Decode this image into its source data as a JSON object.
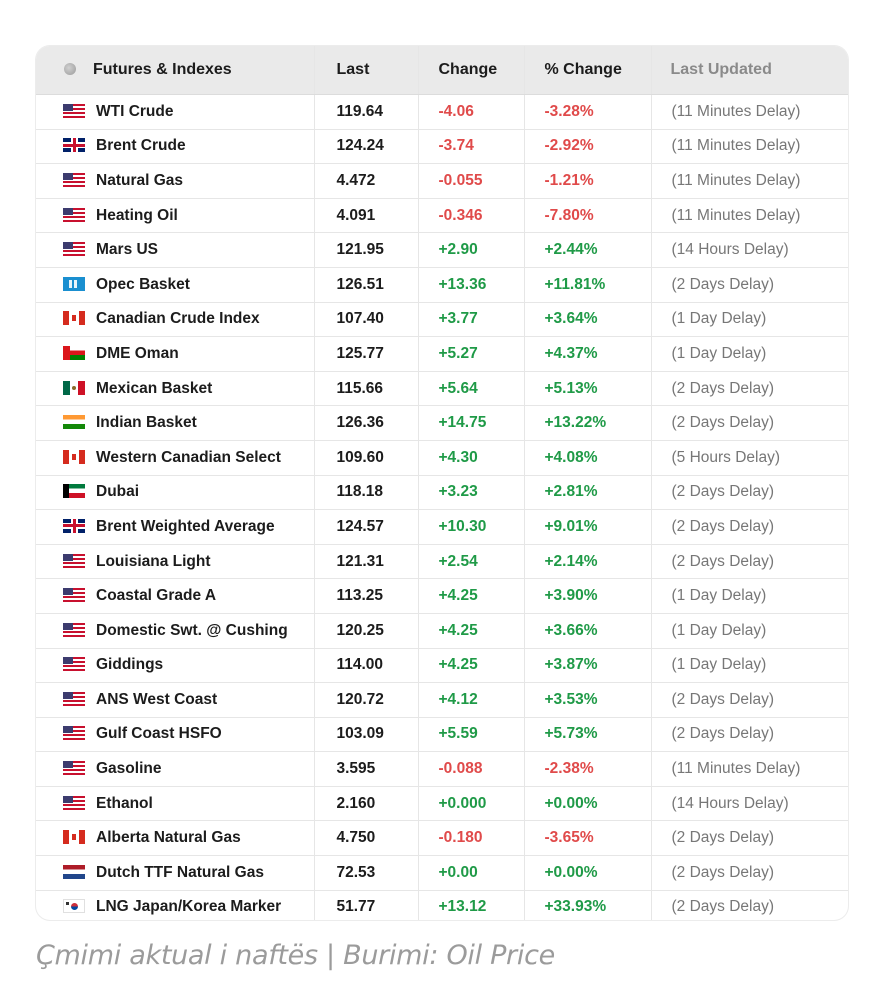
{
  "table": {
    "headers": {
      "name": "Futures & Indexes",
      "last": "Last",
      "change": "Change",
      "pct_change": "% Change",
      "updated": "Last Updated"
    },
    "rows": [
      {
        "name": "WTI Crude",
        "flag": "us-flag-icon",
        "last": "119.64",
        "change": "-4.06",
        "pct": "-3.28%",
        "updated": "(11 Minutes Delay)",
        "trend": "neg"
      },
      {
        "name": "Brent Crude",
        "flag": "uk-flag-icon",
        "last": "124.24",
        "change": "-3.74",
        "pct": "-2.92%",
        "updated": "(11 Minutes Delay)",
        "trend": "neg"
      },
      {
        "name": "Natural Gas",
        "flag": "us-flag-icon",
        "last": "4.472",
        "change": "-0.055",
        "pct": "-1.21%",
        "updated": "(11 Minutes Delay)",
        "trend": "neg"
      },
      {
        "name": "Heating Oil",
        "flag": "us-flag-icon",
        "last": "4.091",
        "change": "-0.346",
        "pct": "-7.80%",
        "updated": "(11 Minutes Delay)",
        "trend": "neg"
      },
      {
        "name": "Mars US",
        "flag": "us-flag-icon",
        "last": "121.95",
        "change": "+2.90",
        "pct": "+2.44%",
        "updated": "(14 Hours Delay)",
        "trend": "pos"
      },
      {
        "name": "Opec Basket",
        "flag": "opec-flag-icon",
        "last": "126.51",
        "change": "+13.36",
        "pct": "+11.81%",
        "updated": "(2 Days Delay)",
        "trend": "pos"
      },
      {
        "name": "Canadian Crude Index",
        "flag": "canada-flag-icon",
        "last": "107.40",
        "change": "+3.77",
        "pct": "+3.64%",
        "updated": "(1 Day Delay)",
        "trend": "pos"
      },
      {
        "name": "DME Oman",
        "flag": "oman-flag-icon",
        "last": "125.77",
        "change": "+5.27",
        "pct": "+4.37%",
        "updated": "(1 Day Delay)",
        "trend": "pos"
      },
      {
        "name": "Mexican Basket",
        "flag": "mexico-flag-icon",
        "last": "115.66",
        "change": "+5.64",
        "pct": "+5.13%",
        "updated": "(2 Days Delay)",
        "trend": "pos"
      },
      {
        "name": "Indian Basket",
        "flag": "india-flag-icon",
        "last": "126.36",
        "change": "+14.75",
        "pct": "+13.22%",
        "updated": "(2 Days Delay)",
        "trend": "pos"
      },
      {
        "name": "Western Canadian Select",
        "flag": "canada-flag-icon",
        "last": "109.60",
        "change": "+4.30",
        "pct": "+4.08%",
        "updated": "(5 Hours Delay)",
        "trend": "pos"
      },
      {
        "name": "Dubai",
        "flag": "uae-flag-icon",
        "last": "118.18",
        "change": "+3.23",
        "pct": "+2.81%",
        "updated": "(2 Days Delay)",
        "trend": "pos"
      },
      {
        "name": "Brent Weighted Average",
        "flag": "uk-flag-icon",
        "last": "124.57",
        "change": "+10.30",
        "pct": "+9.01%",
        "updated": "(2 Days Delay)",
        "trend": "pos"
      },
      {
        "name": "Louisiana Light",
        "flag": "us-flag-icon",
        "last": "121.31",
        "change": "+2.54",
        "pct": "+2.14%",
        "updated": "(2 Days Delay)",
        "trend": "pos"
      },
      {
        "name": "Coastal Grade A",
        "flag": "us-flag-icon",
        "last": "113.25",
        "change": "+4.25",
        "pct": "+3.90%",
        "updated": "(1 Day Delay)",
        "trend": "pos"
      },
      {
        "name": "Domestic Swt. @ Cushing",
        "flag": "us-flag-icon",
        "last": "120.25",
        "change": "+4.25",
        "pct": "+3.66%",
        "updated": "(1 Day Delay)",
        "trend": "pos"
      },
      {
        "name": "Giddings",
        "flag": "us-flag-icon",
        "last": "114.00",
        "change": "+4.25",
        "pct": "+3.87%",
        "updated": "(1 Day Delay)",
        "trend": "pos"
      },
      {
        "name": "ANS West Coast",
        "flag": "us-flag-icon",
        "last": "120.72",
        "change": "+4.12",
        "pct": "+3.53%",
        "updated": "(2 Days Delay)",
        "trend": "pos"
      },
      {
        "name": "Gulf Coast HSFO",
        "flag": "us-flag-icon",
        "last": "103.09",
        "change": "+5.59",
        "pct": "+5.73%",
        "updated": "(2 Days Delay)",
        "trend": "pos"
      },
      {
        "name": "Gasoline",
        "flag": "us-flag-icon",
        "last": "3.595",
        "change": "-0.088",
        "pct": "-2.38%",
        "updated": "(11 Minutes Delay)",
        "trend": "neg"
      },
      {
        "name": "Ethanol",
        "flag": "us-flag-icon",
        "last": "2.160",
        "change": "+0.000",
        "pct": "+0.00%",
        "updated": "(14 Hours Delay)",
        "trend": "pos"
      },
      {
        "name": "Alberta Natural Gas",
        "flag": "canada-flag-icon",
        "last": "4.750",
        "change": "-0.180",
        "pct": "-3.65%",
        "updated": "(2 Days Delay)",
        "trend": "neg"
      },
      {
        "name": "Dutch TTF Natural Gas",
        "flag": "netherlands-flag-icon",
        "last": "72.53",
        "change": "+0.00",
        "pct": "+0.00%",
        "updated": "(2 Days Delay)",
        "trend": "pos"
      },
      {
        "name": "LNG Japan/Korea Marker",
        "flag": "korea-flag-icon",
        "last": "51.77",
        "change": "+13.12",
        "pct": "+33.93%",
        "updated": "(2 Days Delay)",
        "trend": "pos"
      }
    ]
  },
  "caption": "Çmimi aktual i naftës | Burimi: Oil Price",
  "colors": {
    "negative": "#e04a4a",
    "positive": "#1f9a47",
    "header_bg": "#eaeaea"
  }
}
